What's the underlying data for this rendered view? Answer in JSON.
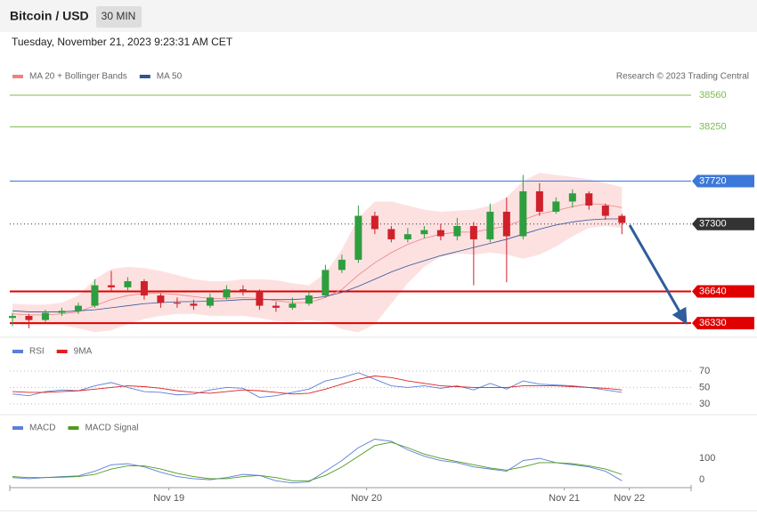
{
  "header": {
    "title": "Bitcoin / USD",
    "interval": "30 MIN",
    "timestamp": "Tuesday, November 21, 2023 9:23:31 AM CET",
    "attribution": "Research © 2023 Trading Central"
  },
  "chart_data": [
    {
      "type": "candlestick",
      "xlim": [
        -0.16,
        41.2
      ],
      "ylim": [
        36200,
        38665
      ],
      "open": [
        36380,
        36400,
        36360,
        36430,
        36450,
        36500,
        36700,
        36680,
        36740,
        36600,
        36530,
        36520,
        36500,
        36580,
        36660,
        36640,
        36500,
        36480,
        36520,
        36600,
        36850,
        36950,
        37380,
        37250,
        37150,
        37200,
        37240,
        37180,
        37280,
        37150,
        37420,
        37180,
        37620,
        37420,
        37520,
        37600,
        37480,
        37380
      ],
      "high": [
        36430,
        36420,
        36460,
        36480,
        36530,
        36760,
        36840,
        36780,
        36760,
        36620,
        36580,
        36560,
        36620,
        36700,
        36700,
        36660,
        36540,
        36580,
        36640,
        36900,
        37000,
        37480,
        37420,
        37280,
        37260,
        37280,
        37300,
        37360,
        37320,
        37500,
        37560,
        37780,
        37700,
        37560,
        37640,
        37620,
        37500,
        37400
      ],
      "low": [
        36300,
        36280,
        36340,
        36400,
        36420,
        36480,
        36640,
        36640,
        36560,
        36480,
        36480,
        36460,
        36480,
        36560,
        36600,
        36460,
        36440,
        36460,
        36500,
        36580,
        36820,
        36920,
        37200,
        37120,
        37120,
        37160,
        37140,
        37140,
        36700,
        37120,
        36730,
        37150,
        37380,
        37400,
        37460,
        37440,
        37340,
        37200
      ],
      "close": [
        36400,
        36360,
        36430,
        36450,
        36500,
        36700,
        36680,
        36740,
        36600,
        36530,
        36520,
        36500,
        36580,
        36660,
        36640,
        36500,
        36480,
        36520,
        36600,
        36850,
        36950,
        37380,
        37250,
        37150,
        37200,
        37240,
        37180,
        37280,
        37150,
        37420,
        37180,
        37620,
        37420,
        37520,
        37600,
        37480,
        37380,
        37310
      ],
      "up_color": "#2e9e3e",
      "down_color": "#d0202a",
      "band": {
        "color": "#fcd9d9",
        "upper": [
          36520,
          36510,
          36510,
          36530,
          36600,
          36760,
          36860,
          36880,
          36870,
          36840,
          36800,
          36760,
          36740,
          36740,
          36760,
          36760,
          36750,
          36720,
          36700,
          36820,
          37050,
          37360,
          37520,
          37520,
          37480,
          37440,
          37420,
          37430,
          37440,
          37480,
          37560,
          37720,
          37800,
          37780,
          37760,
          37740,
          37700,
          37660
        ],
        "lower": [
          36320,
          36310,
          36310,
          36310,
          36280,
          36240,
          36260,
          36320,
          36370,
          36400,
          36420,
          36420,
          36400,
          36400,
          36400,
          36380,
          36350,
          36340,
          36360,
          36340,
          36270,
          36240,
          36320,
          36520,
          36720,
          36880,
          36980,
          37010,
          37000,
          37020,
          37000,
          36960,
          37000,
          37080,
          37180,
          37260,
          37280,
          37260
        ]
      },
      "series": [
        {
          "name": "MA 20 + Bollinger Bands",
          "color": "#f08080",
          "values": [
            36420,
            36410,
            36410,
            36420,
            36440,
            36500,
            36560,
            36600,
            36620,
            36620,
            36610,
            36590,
            36570,
            36570,
            36580,
            36570,
            36550,
            36530,
            36530,
            36580,
            36660,
            36800,
            36920,
            37020,
            37100,
            37160,
            37200,
            37220,
            37220,
            37250,
            37280,
            37340,
            37400,
            37430,
            37470,
            37500,
            37490,
            37460
          ]
        },
        {
          "name": "MA 50",
          "color": "#2f5597",
          "values": [
            36450,
            36440,
            36440,
            36440,
            36450,
            36460,
            36480,
            36500,
            36520,
            36530,
            36540,
            36540,
            36545,
            36550,
            36560,
            36560,
            36560,
            36560,
            36570,
            36590,
            36630,
            36690,
            36760,
            36830,
            36890,
            36940,
            36990,
            37030,
            37070,
            37110,
            37150,
            37200,
            37250,
            37290,
            37320,
            37340,
            37350,
            37350
          ]
        }
      ],
      "levels": [
        {
          "value": 38560,
          "color": "#7cbb4f",
          "boxed": false,
          "dotted": false
        },
        {
          "value": 38250,
          "color": "#7cbb4f",
          "boxed": false,
          "dotted": false
        },
        {
          "value": 37720,
          "color": "#3c78d8",
          "boxed": true,
          "dotted": false
        },
        {
          "value": 37300,
          "color": "#333333",
          "boxed": true,
          "dotted": true
        },
        {
          "value": 36640,
          "color": "#e00000",
          "boxed": true,
          "dotted": false
        },
        {
          "value": 36330,
          "color": "#e00000",
          "boxed": true,
          "dotted": false
        }
      ]
    },
    {
      "type": "line",
      "xlim": [
        -0.16,
        41.2
      ],
      "ylim": [
        18,
        110
      ],
      "yticks": [
        30,
        50,
        70
      ],
      "grid": true,
      "series": [
        {
          "name": "RSI",
          "color": "#5b7fd6",
          "values": [
            42,
            40,
            45,
            47,
            46,
            52,
            56,
            50,
            45,
            44,
            41,
            42,
            47,
            50,
            49,
            38,
            40,
            44,
            48,
            58,
            62,
            68,
            60,
            52,
            50,
            52,
            49,
            52,
            47,
            55,
            48,
            58,
            54,
            53,
            52,
            50,
            47,
            44
          ]
        },
        {
          "name": "9MA",
          "color": "#e02020",
          "values": [
            45,
            44,
            44,
            45,
            46,
            48,
            50,
            52,
            51,
            49,
            46,
            44,
            43,
            45,
            47,
            46,
            44,
            42,
            43,
            48,
            54,
            60,
            64,
            62,
            58,
            55,
            52,
            51,
            50,
            50,
            50,
            52,
            52,
            52,
            51,
            50,
            49,
            47
          ]
        }
      ]
    },
    {
      "type": "line",
      "xlim": [
        -0.16,
        41.2
      ],
      "ylim": [
        -37,
        288
      ],
      "yticks": [
        0,
        100
      ],
      "grid": false,
      "xticks": [
        {
          "value": 9.5,
          "label": "Nov 19"
        },
        {
          "value": 21.5,
          "label": "Nov 20"
        },
        {
          "value": 33.5,
          "label": "Nov 21"
        },
        {
          "value": 37.45,
          "label": "Nov 22"
        }
      ],
      "series": [
        {
          "name": "MACD",
          "color": "#5b7fd6",
          "values": [
            10,
            5,
            10,
            15,
            18,
            40,
            70,
            75,
            60,
            35,
            15,
            5,
            0,
            10,
            25,
            20,
            -5,
            -15,
            -10,
            40,
            90,
            150,
            190,
            180,
            140,
            110,
            90,
            80,
            60,
            50,
            40,
            90,
            100,
            80,
            70,
            60,
            40,
            -5
          ]
        },
        {
          "name": "MACD Signal",
          "color": "#4d9a1e",
          "values": [
            15,
            10,
            10,
            12,
            15,
            25,
            50,
            65,
            65,
            50,
            30,
            15,
            5,
            5,
            15,
            20,
            10,
            -5,
            -5,
            20,
            60,
            110,
            160,
            175,
            150,
            120,
            100,
            85,
            70,
            55,
            45,
            60,
            80,
            80,
            75,
            65,
            50,
            25
          ]
        }
      ]
    }
  ]
}
